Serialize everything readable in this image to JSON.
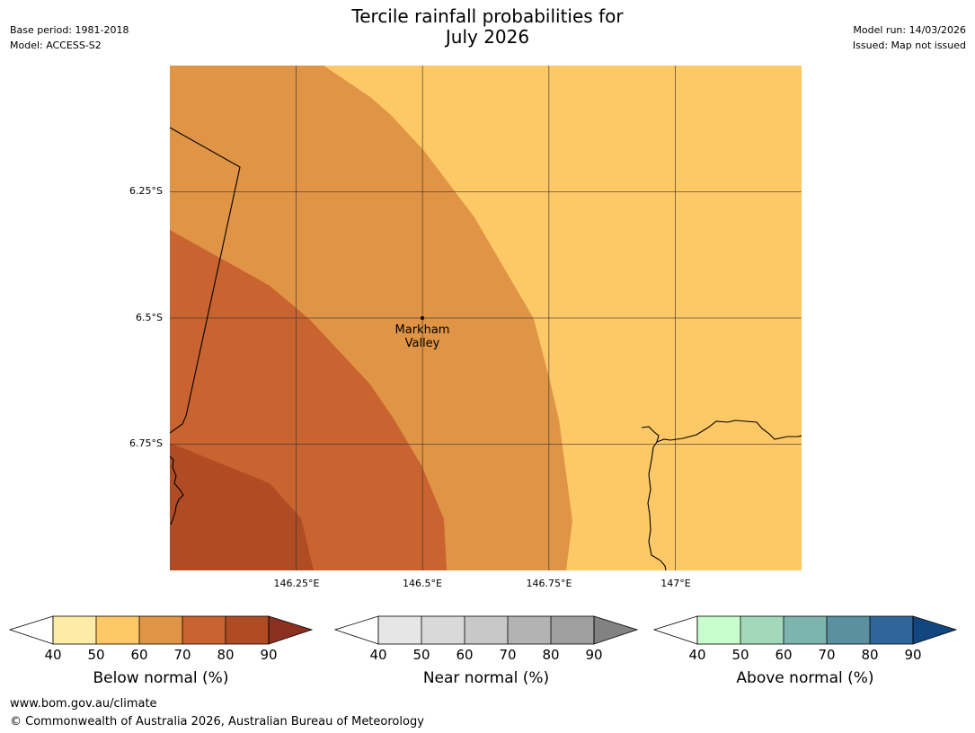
{
  "header": {
    "title_line1": "Tercile rainfall probabilities for",
    "title_line2": "July 2026",
    "base_period": "Base period: 1981-2018",
    "model": "Model: ACCESS-S2",
    "model_run": "Model run: 14/03/2026",
    "issued": "Issued: Map not issued"
  },
  "map": {
    "latitude_labels": [
      "6.25°S",
      "6.5°S",
      "6.75°S"
    ],
    "longitude_labels": [
      "146.25°E",
      "146.5°E",
      "146.75°E",
      "147°E"
    ],
    "place": {
      "name_line1": "Markham",
      "name_line2": "Valley"
    },
    "category_colors": {
      "below_50_60": "#fdc966",
      "below_60_70": "#e09445",
      "below_70_80": "#c96330",
      "below_80_90": "#b04c24"
    }
  },
  "legends": [
    {
      "title": "Below normal (%)",
      "ticks": [
        "40",
        "50",
        "60",
        "70",
        "80",
        "90"
      ],
      "colors": [
        "#fdeca6",
        "#fdc966",
        "#e09445",
        "#c96330",
        "#b04c24",
        "#8c3020"
      ]
    },
    {
      "title": "Near normal (%)",
      "ticks": [
        "40",
        "50",
        "60",
        "70",
        "80",
        "90"
      ],
      "colors": [
        "#e6e6e6",
        "#d9d9d9",
        "#c8c8c8",
        "#b3b3b3",
        "#9f9f9f",
        "#828282"
      ]
    },
    {
      "title": "Above normal (%)",
      "ticks": [
        "40",
        "50",
        "60",
        "70",
        "80",
        "90"
      ],
      "colors": [
        "#c8fccc",
        "#a3d9bb",
        "#7eb4ae",
        "#5a90a0",
        "#2f6598",
        "#114680"
      ]
    }
  ],
  "footer": {
    "url": "www.bom.gov.au/climate",
    "copyright": "© Commonwealth of Australia 2026, Australian Bureau of Meteorology"
  }
}
